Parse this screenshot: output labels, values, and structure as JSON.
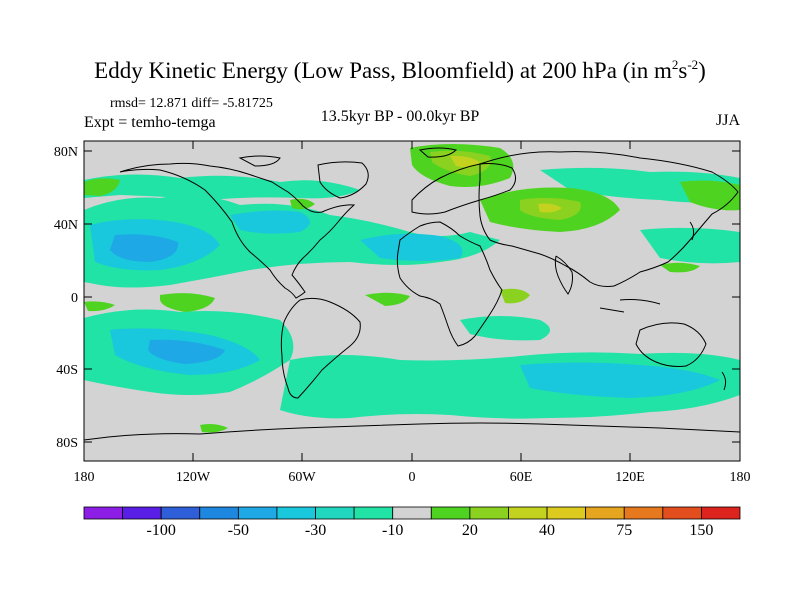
{
  "title_main": "Eddy Kinetic Energy (Low Pass, Bloomfield) at 200 hPa (in m",
  "title_sup1": "2",
  "title_mid": "s",
  "title_sup2": "-2",
  "title_end": ")",
  "stats": "rmsd= 12.871 diff= -5.81725",
  "experiment": "Expt = temho-temga",
  "period": "13.5kyr BP - 00.0kyr BP",
  "season": "JJA",
  "lat_ticks": [
    "80N",
    "40N",
    "0",
    "40S",
    "80S"
  ],
  "lon_ticks": [
    "180",
    "120W",
    "60W",
    "0",
    "60E",
    "120E",
    "180"
  ],
  "colorbar": {
    "colors": [
      "#8c1ee6",
      "#5a1fe6",
      "#2e5ed8",
      "#1e87e0",
      "#1ea8e6",
      "#19c8dc",
      "#22d7c0",
      "#21e3a6",
      "#d3d3d3",
      "#4fd321",
      "#8ad21f",
      "#c3d21e",
      "#dccb1e",
      "#e6a51e",
      "#e6781e",
      "#e24e1e",
      "#dc231e"
    ],
    "labels": [
      "-100",
      "-50",
      "-30",
      "-10",
      "20",
      "40",
      "75",
      "150"
    ]
  },
  "colors": {
    "land_bg": "#d3d3d3",
    "neg_light": "#21e3a6",
    "neg_mid": "#19c8dc",
    "neg_strong": "#1ea8e6",
    "neg_stronger": "#1e87e0",
    "pos_light": "#4fd321",
    "pos_mid": "#8ad21f",
    "pos_strong": "#c3d21e"
  }
}
